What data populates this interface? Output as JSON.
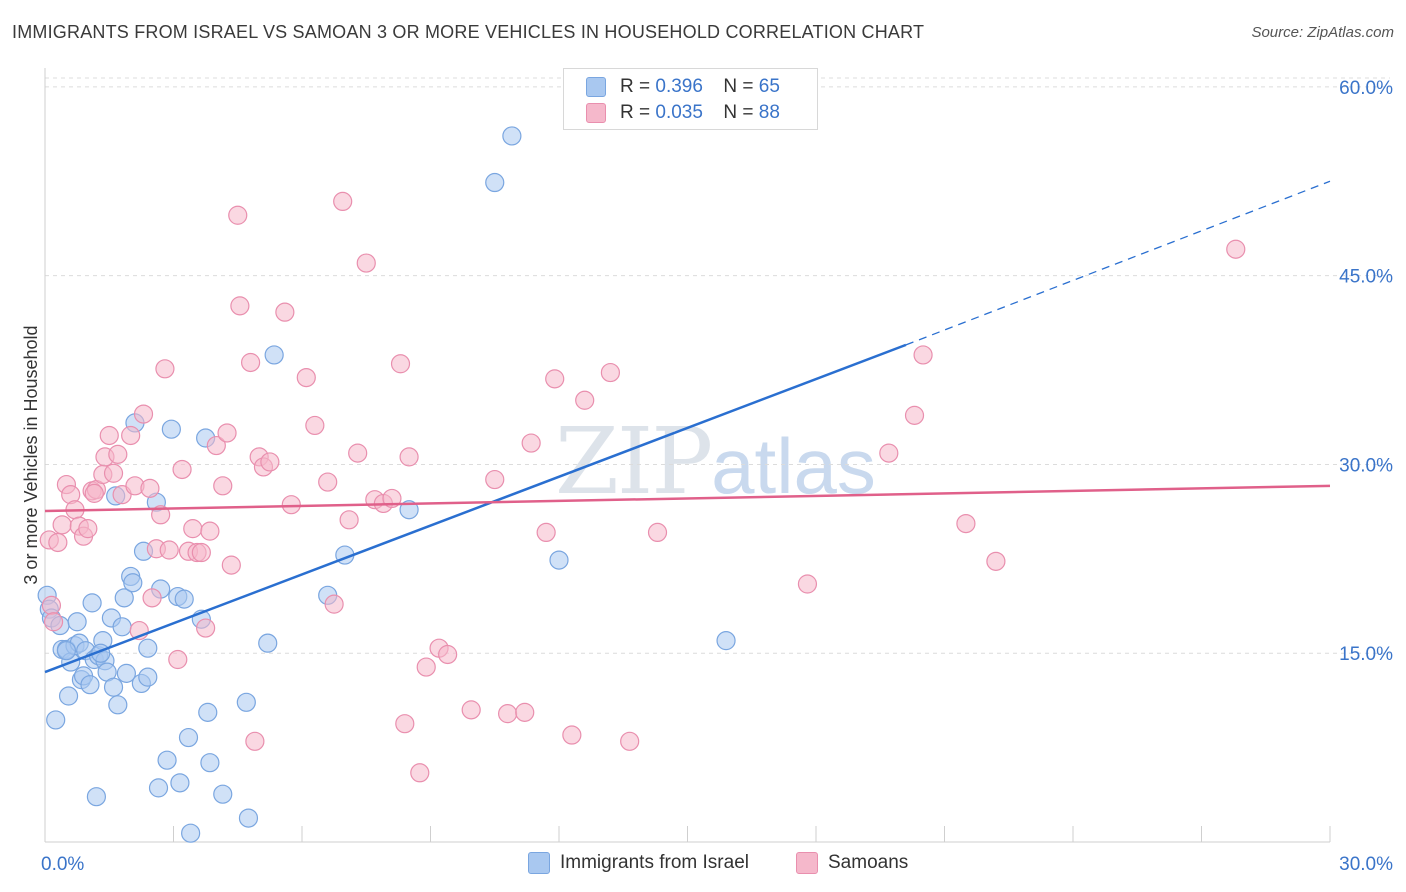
{
  "title": "IMMIGRANTS FROM ISRAEL VS SAMOAN 3 OR MORE VEHICLES IN HOUSEHOLD CORRELATION CHART",
  "source": "Source: ZipAtlas.com",
  "watermark": {
    "zip": "ZIP",
    "atlas": "atlas"
  },
  "colors": {
    "blue": "#a9c8f0",
    "blue_stroke": "#7aa6e0",
    "blue_line": "#2a6fd0",
    "pink": "#f5b8cb",
    "pink_stroke": "#e98fae",
    "pink_line": "#e0608a",
    "axis_text": "#3a74c9",
    "grid": "#dcdcdc"
  },
  "legend_top": [
    {
      "series": "blue",
      "r_label": "R =",
      "r_value": "0.396",
      "n_label": "N =",
      "n_value": "65"
    },
    {
      "series": "pink",
      "r_label": "R =",
      "r_value": "0.035",
      "n_label": "N =",
      "n_value": "88"
    }
  ],
  "legend_bottom": [
    {
      "series": "blue",
      "label": "Immigrants from Israel"
    },
    {
      "series": "pink",
      "label": "Samoans"
    }
  ],
  "chart_data": {
    "type": "scatter",
    "title": "IMMIGRANTS FROM ISRAEL VS SAMOAN 3 OR MORE VEHICLES IN HOUSEHOLD CORRELATION CHART",
    "xlabel": "",
    "ylabel": "3 or more Vehicles in Household",
    "xlim": [
      0,
      30
    ],
    "ylim": [
      0,
      61.5
    ],
    "x_ticks": [
      0,
      3,
      6,
      9,
      12,
      15,
      18,
      21,
      24,
      27,
      30
    ],
    "x_tick_labels": [
      {
        "value": 0,
        "label": "0.0%"
      },
      {
        "value": 30,
        "label": "30.0%"
      }
    ],
    "y_ticks": [
      {
        "value": 15,
        "label": "15.0%"
      },
      {
        "value": 30,
        "label": "30.0%"
      },
      {
        "value": 45,
        "label": "45.0%"
      },
      {
        "value": 60,
        "label": "60.0%"
      }
    ],
    "grid": true,
    "legend": "top-center",
    "series": [
      {
        "name": "Immigrants from Israel",
        "color": "blue",
        "trend": {
          "x0": 0,
          "y0": 13.5,
          "x1": 20.1,
          "y1": 39.5,
          "dash_to_x": 30,
          "dash_to_y": 52.5
        },
        "points": [
          [
            0.05,
            19.6
          ],
          [
            0.1,
            18.5
          ],
          [
            0.15,
            17.8
          ],
          [
            0.25,
            9.7
          ],
          [
            0.35,
            17.2
          ],
          [
            0.4,
            15.3
          ],
          [
            0.5,
            15.3
          ],
          [
            0.55,
            11.6
          ],
          [
            0.6,
            14.3
          ],
          [
            0.7,
            15.6
          ],
          [
            0.75,
            17.5
          ],
          [
            0.8,
            15.8
          ],
          [
            0.85,
            12.9
          ],
          [
            0.9,
            13.2
          ],
          [
            0.95,
            15.2
          ],
          [
            1.05,
            12.5
          ],
          [
            1.1,
            19.0
          ],
          [
            1.15,
            14.5
          ],
          [
            1.2,
            3.6
          ],
          [
            1.25,
            14.8
          ],
          [
            1.35,
            16.0
          ],
          [
            1.4,
            14.4
          ],
          [
            1.45,
            13.5
          ],
          [
            1.55,
            17.8
          ],
          [
            1.6,
            12.3
          ],
          [
            1.65,
            27.5
          ],
          [
            1.7,
            10.9
          ],
          [
            1.8,
            17.1
          ],
          [
            1.85,
            19.4
          ],
          [
            1.9,
            13.4
          ],
          [
            2.0,
            21.1
          ],
          [
            2.05,
            20.6
          ],
          [
            2.1,
            33.3
          ],
          [
            2.25,
            12.6
          ],
          [
            2.3,
            23.1
          ],
          [
            2.4,
            13.1
          ],
          [
            2.4,
            15.4
          ],
          [
            2.6,
            27.0
          ],
          [
            2.65,
            4.3
          ],
          [
            2.7,
            20.1
          ],
          [
            2.85,
            6.5
          ],
          [
            2.95,
            32.8
          ],
          [
            3.1,
            19.5
          ],
          [
            3.15,
            4.7
          ],
          [
            3.25,
            19.3
          ],
          [
            3.35,
            8.3
          ],
          [
            3.4,
            0.7
          ],
          [
            3.65,
            17.7
          ],
          [
            3.75,
            32.1
          ],
          [
            3.8,
            10.3
          ],
          [
            3.85,
            6.3
          ],
          [
            4.15,
            3.8
          ],
          [
            4.7,
            11.1
          ],
          [
            4.75,
            1.9
          ],
          [
            5.2,
            15.8
          ],
          [
            5.35,
            38.7
          ],
          [
            6.6,
            19.6
          ],
          [
            7.0,
            22.8
          ],
          [
            8.5,
            26.4
          ],
          [
            10.5,
            52.4
          ],
          [
            10.9,
            56.1
          ],
          [
            12.0,
            22.4
          ],
          [
            15.9,
            16.0
          ],
          [
            0.5,
            15.2
          ],
          [
            1.3,
            15.0
          ]
        ]
      },
      {
        "name": "Samoans",
        "color": "pink",
        "trend": {
          "x0": 0,
          "y0": 26.3,
          "x1": 30,
          "y1": 28.3
        },
        "points": [
          [
            0.1,
            24.0
          ],
          [
            0.15,
            18.8
          ],
          [
            0.2,
            17.5
          ],
          [
            0.3,
            23.8
          ],
          [
            0.4,
            25.2
          ],
          [
            0.5,
            28.4
          ],
          [
            0.6,
            27.6
          ],
          [
            0.7,
            26.4
          ],
          [
            0.8,
            25.1
          ],
          [
            0.9,
            24.3
          ],
          [
            1.0,
            24.9
          ],
          [
            1.1,
            27.9
          ],
          [
            1.2,
            28.0
          ],
          [
            1.35,
            29.2
          ],
          [
            1.4,
            30.6
          ],
          [
            1.5,
            32.3
          ],
          [
            1.6,
            29.3
          ],
          [
            1.7,
            30.8
          ],
          [
            1.8,
            27.6
          ],
          [
            2.0,
            32.3
          ],
          [
            2.1,
            28.3
          ],
          [
            2.2,
            16.8
          ],
          [
            2.3,
            34.0
          ],
          [
            2.5,
            19.4
          ],
          [
            2.6,
            23.3
          ],
          [
            2.7,
            26.0
          ],
          [
            2.8,
            37.6
          ],
          [
            2.9,
            23.2
          ],
          [
            3.1,
            14.5
          ],
          [
            3.2,
            29.6
          ],
          [
            3.35,
            23.1
          ],
          [
            3.45,
            24.9
          ],
          [
            3.55,
            23.0
          ],
          [
            3.65,
            23.0
          ],
          [
            3.75,
            17.0
          ],
          [
            3.85,
            24.7
          ],
          [
            4.0,
            31.5
          ],
          [
            4.15,
            28.3
          ],
          [
            4.25,
            32.5
          ],
          [
            4.35,
            22.0
          ],
          [
            4.5,
            49.8
          ],
          [
            4.55,
            42.6
          ],
          [
            4.8,
            38.1
          ],
          [
            4.9,
            8.0
          ],
          [
            5.0,
            30.6
          ],
          [
            5.1,
            29.8
          ],
          [
            5.25,
            30.2
          ],
          [
            5.6,
            42.1
          ],
          [
            5.75,
            26.8
          ],
          [
            6.1,
            36.9
          ],
          [
            6.3,
            33.1
          ],
          [
            6.6,
            28.6
          ],
          [
            6.75,
            18.9
          ],
          [
            6.95,
            50.9
          ],
          [
            7.1,
            25.6
          ],
          [
            7.3,
            30.9
          ],
          [
            7.5,
            46.0
          ],
          [
            7.7,
            27.2
          ],
          [
            7.9,
            26.9
          ],
          [
            8.1,
            27.3
          ],
          [
            8.3,
            38.0
          ],
          [
            8.4,
            9.4
          ],
          [
            8.5,
            30.6
          ],
          [
            8.75,
            5.5
          ],
          [
            8.9,
            13.9
          ],
          [
            9.2,
            15.4
          ],
          [
            9.4,
            14.9
          ],
          [
            9.95,
            10.5
          ],
          [
            10.5,
            28.8
          ],
          [
            10.8,
            10.2
          ],
          [
            11.2,
            10.3
          ],
          [
            11.35,
            31.7
          ],
          [
            11.7,
            24.6
          ],
          [
            11.9,
            36.8
          ],
          [
            12.3,
            8.5
          ],
          [
            12.6,
            35.1
          ],
          [
            13.2,
            37.3
          ],
          [
            13.65,
            8.0
          ],
          [
            14.3,
            24.6
          ],
          [
            17.8,
            20.5
          ],
          [
            19.7,
            30.9
          ],
          [
            20.3,
            33.9
          ],
          [
            20.5,
            38.7
          ],
          [
            21.5,
            25.3
          ],
          [
            22.2,
            22.3
          ],
          [
            27.8,
            47.1
          ],
          [
            1.15,
            27.7
          ],
          [
            2.45,
            28.1
          ]
        ]
      }
    ]
  }
}
